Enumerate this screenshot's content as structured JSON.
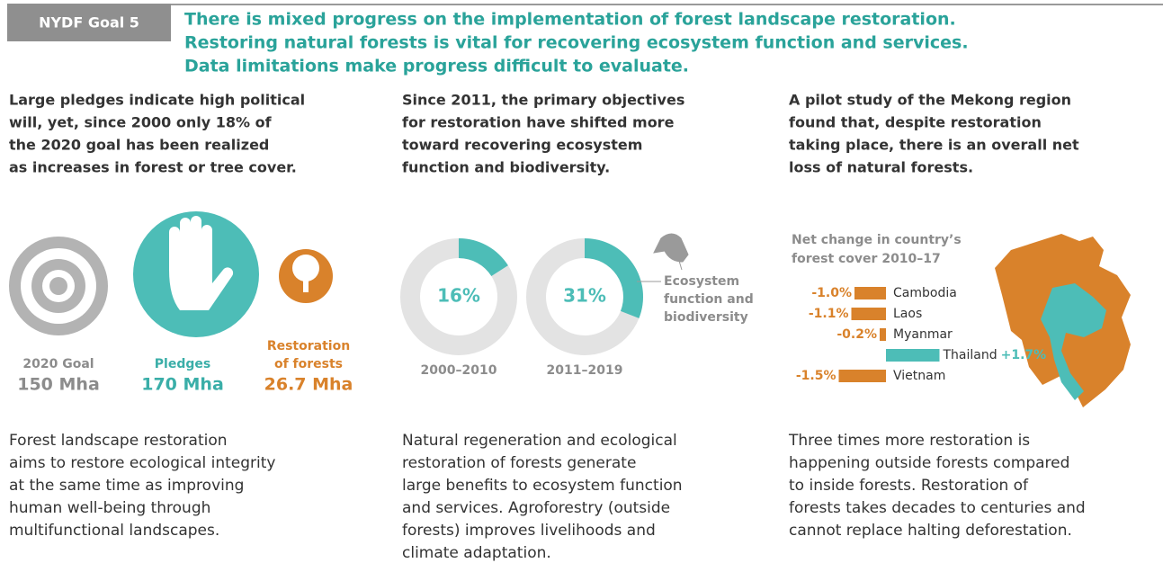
{
  "header": {
    "badge": "NYDF Goal 5",
    "lines": [
      "There is mixed progress on the implementation of forest landscape restoration.",
      "Restoring natural forests is vital for recovering ecosystem function and services.",
      "Data limitations make progress difficult to evaluate."
    ]
  },
  "columns": [
    {
      "heading": [
        "Large pledges indicate high political",
        "will, yet, since 2000 only 18% of",
        "the 2020 goal has been realized",
        "as increases in forest or tree cover."
      ],
      "body": [
        "Forest landscape restoration",
        "aims to restore ecological integrity",
        "at the same time as improving",
        "human well-being through",
        "multifunctional landscapes."
      ]
    },
    {
      "heading": [
        "Since 2011, the primary objectives",
        "for restoration have shifted more",
        "toward recovering ecosystem",
        "function and biodiversity."
      ],
      "body": [
        "Natural regeneration and ecological",
        "restoration of forests generate",
        "large benefits to ecosystem function",
        "and services. Agroforestry (outside",
        "forests) improves livelihoods and",
        "climate adaptation."
      ]
    },
    {
      "heading": [
        "A pilot study of the Mekong region",
        "found that, despite restoration",
        "taking place, there is an overall net",
        "loss of natural forests."
      ],
      "body": [
        "Three times more restoration is",
        "happening outside forests compared",
        "to inside forests. Restoration of",
        "forests takes decades to centuries and",
        "cannot replace halting deforestation."
      ]
    }
  ],
  "stats": [
    {
      "label": [
        "2020 Goal"
      ],
      "value": "150 Mha",
      "color": "#8c8c8c"
    },
    {
      "label": [
        "Pledges"
      ],
      "value": "170 Mha",
      "color": "#3aaea8"
    },
    {
      "label": [
        "Restoration",
        "of forests"
      ],
      "value": "26.7 Mha",
      "color": "#d9822b"
    }
  ],
  "chart_data": [
    {
      "type": "donut",
      "categories": [
        "2000–2010",
        "2011–2019"
      ],
      "values": [
        16,
        31
      ],
      "value_labels": [
        "16%",
        "31%"
      ],
      "range": [
        0,
        100
      ],
      "color": "#4dbdb7",
      "rest_color": "#e3e3e3",
      "legend_lines": [
        "Ecosystem",
        "function and",
        "biodiversity"
      ]
    },
    {
      "type": "hbar",
      "title_lines": [
        "Net change in country’s",
        "forest cover 2010–17"
      ],
      "categories": [
        "Cambodia",
        "Laos",
        "Myanmar",
        "Thailand",
        "Vietnam"
      ],
      "values": [
        -1.0,
        -1.1,
        -0.2,
        1.7,
        -1.5
      ],
      "value_labels": [
        "-1.0%",
        "-1.1%",
        "-0.2%",
        "+1.7%",
        "-1.5%"
      ],
      "xlim": [
        -3,
        3
      ],
      "positive_color": "#4dbdb7",
      "negative_color": "#d9822b"
    }
  ]
}
